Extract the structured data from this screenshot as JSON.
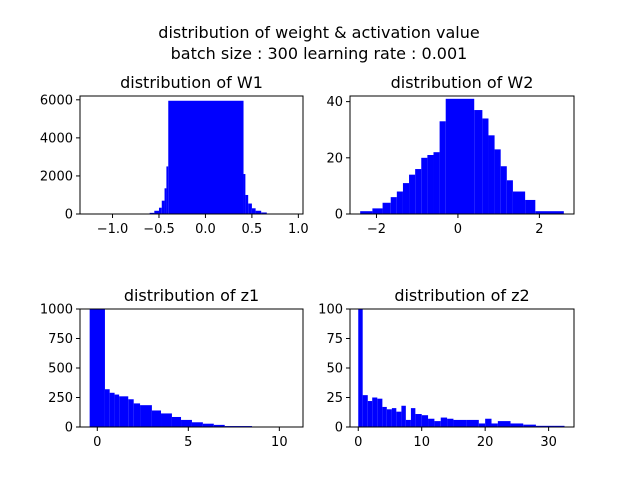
{
  "figure": {
    "title_line1": "distribution of weight & activation value",
    "title_line2": "batch size : 300 learning rate : 0.001",
    "bar_color": "#0000ff"
  },
  "chart_data": [
    {
      "type": "bar",
      "title": "distribution of W1",
      "xlim": [
        -1.35,
        1.05
      ],
      "ylim": [
        0,
        6200
      ],
      "xticks": [
        -1.0,
        -0.5,
        0.0,
        0.5,
        1.0
      ],
      "xtick_labels": [
        "−1.0",
        "−0.5",
        "0.0",
        "0.5",
        "1.0"
      ],
      "yticks": [
        0,
        2000,
        4000,
        6000
      ],
      "ytick_labels": [
        "0",
        "2000",
        "4000",
        "6000"
      ],
      "bins": [
        {
          "x0": -1.24,
          "x1": -0.6,
          "y": 5
        },
        {
          "x0": -0.6,
          "x1": -0.55,
          "y": 60
        },
        {
          "x0": -0.55,
          "x1": -0.5,
          "y": 170
        },
        {
          "x0": -0.5,
          "x1": -0.47,
          "y": 330
        },
        {
          "x0": -0.47,
          "x1": -0.44,
          "y": 700
        },
        {
          "x0": -0.44,
          "x1": -0.42,
          "y": 1350
        },
        {
          "x0": -0.42,
          "x1": -0.4,
          "y": 2500
        },
        {
          "x0": -0.4,
          "x1": 0.41,
          "y": 5950
        },
        {
          "x0": 0.41,
          "x1": 0.43,
          "y": 2100
        },
        {
          "x0": 0.43,
          "x1": 0.46,
          "y": 1000
        },
        {
          "x0": 0.46,
          "x1": 0.5,
          "y": 550
        },
        {
          "x0": 0.5,
          "x1": 0.54,
          "y": 300
        },
        {
          "x0": 0.54,
          "x1": 0.6,
          "y": 170
        },
        {
          "x0": 0.6,
          "x1": 0.66,
          "y": 80
        },
        {
          "x0": 0.66,
          "x1": 0.9,
          "y": 10
        }
      ]
    },
    {
      "type": "bar",
      "title": "distribution of W2",
      "xlim": [
        -2.65,
        2.85
      ],
      "ylim": [
        0,
        42
      ],
      "xticks": [
        -2,
        0,
        2
      ],
      "xtick_labels": [
        "−2",
        "0",
        "2"
      ],
      "yticks": [
        0,
        20,
        40
      ],
      "ytick_labels": [
        "0",
        "20",
        "40"
      ],
      "bins": [
        {
          "x0": -2.4,
          "x1": -2.1,
          "y": 1
        },
        {
          "x0": -2.1,
          "x1": -1.85,
          "y": 2
        },
        {
          "x0": -1.85,
          "x1": -1.65,
          "y": 4
        },
        {
          "x0": -1.65,
          "x1": -1.5,
          "y": 6
        },
        {
          "x0": -1.5,
          "x1": -1.35,
          "y": 8
        },
        {
          "x0": -1.35,
          "x1": -1.2,
          "y": 11
        },
        {
          "x0": -1.2,
          "x1": -1.05,
          "y": 14
        },
        {
          "x0": -1.05,
          "x1": -0.9,
          "y": 16
        },
        {
          "x0": -0.9,
          "x1": -0.75,
          "y": 20
        },
        {
          "x0": -0.75,
          "x1": -0.6,
          "y": 21
        },
        {
          "x0": -0.6,
          "x1": -0.45,
          "y": 22
        },
        {
          "x0": -0.45,
          "x1": -0.3,
          "y": 33
        },
        {
          "x0": -0.3,
          "x1": 0.4,
          "y": 41
        },
        {
          "x0": 0.4,
          "x1": 0.6,
          "y": 37
        },
        {
          "x0": 0.6,
          "x1": 0.75,
          "y": 34
        },
        {
          "x0": 0.75,
          "x1": 0.9,
          "y": 28
        },
        {
          "x0": 0.9,
          "x1": 1.05,
          "y": 23
        },
        {
          "x0": 1.05,
          "x1": 1.2,
          "y": 17
        },
        {
          "x0": 1.2,
          "x1": 1.35,
          "y": 12
        },
        {
          "x0": 1.35,
          "x1": 1.65,
          "y": 8
        },
        {
          "x0": 1.65,
          "x1": 1.9,
          "y": 5
        },
        {
          "x0": 1.9,
          "x1": 2.6,
          "y": 1
        }
      ]
    },
    {
      "type": "bar",
      "title": "distribution of z1",
      "xlim": [
        -0.95,
        11.3
      ],
      "ylim": [
        0,
        1000
      ],
      "xticks": [
        0,
        5,
        10
      ],
      "xtick_labels": [
        "0",
        "5",
        "10"
      ],
      "yticks": [
        0,
        250,
        500,
        750,
        1000
      ],
      "ytick_labels": [
        "0",
        "250",
        "500",
        "750",
        "1000"
      ],
      "bins": [
        {
          "x0": -0.42,
          "x1": 0.42,
          "y": 1000
        },
        {
          "x0": 0.42,
          "x1": 0.68,
          "y": 320
        },
        {
          "x0": 0.68,
          "x1": 0.95,
          "y": 290
        },
        {
          "x0": 0.95,
          "x1": 1.2,
          "y": 275
        },
        {
          "x0": 1.2,
          "x1": 1.7,
          "y": 260
        },
        {
          "x0": 1.7,
          "x1": 2.0,
          "y": 235
        },
        {
          "x0": 2.0,
          "x1": 2.35,
          "y": 200
        },
        {
          "x0": 2.35,
          "x1": 3.0,
          "y": 185
        },
        {
          "x0": 3.0,
          "x1": 3.5,
          "y": 140
        },
        {
          "x0": 3.5,
          "x1": 4.1,
          "y": 115
        },
        {
          "x0": 4.1,
          "x1": 4.6,
          "y": 85
        },
        {
          "x0": 4.6,
          "x1": 5.2,
          "y": 60
        },
        {
          "x0": 5.2,
          "x1": 5.8,
          "y": 40
        },
        {
          "x0": 5.8,
          "x1": 6.4,
          "y": 28
        },
        {
          "x0": 6.4,
          "x1": 7.0,
          "y": 18
        },
        {
          "x0": 7.0,
          "x1": 8.5,
          "y": 8
        },
        {
          "x0": 8.5,
          "x1": 10.0,
          "y": 3
        },
        {
          "x0": 10.0,
          "x1": 10.6,
          "y": 1
        }
      ]
    },
    {
      "type": "bar",
      "title": "distribution of z2",
      "xlim": [
        -1.3,
        34.0
      ],
      "ylim": [
        0,
        100
      ],
      "xticks": [
        0,
        10,
        20,
        30
      ],
      "xtick_labels": [
        "0",
        "10",
        "20",
        "30"
      ],
      "yticks": [
        0,
        25,
        50,
        75,
        100
      ],
      "ytick_labels": [
        "0",
        "25",
        "50",
        "75",
        "100"
      ],
      "bins": [
        {
          "x0": 0.0,
          "x1": 0.7,
          "y": 100
        },
        {
          "x0": 0.7,
          "x1": 1.5,
          "y": 27
        },
        {
          "x0": 1.5,
          "x1": 2.2,
          "y": 22
        },
        {
          "x0": 2.2,
          "x1": 3.0,
          "y": 25
        },
        {
          "x0": 3.0,
          "x1": 3.8,
          "y": 24
        },
        {
          "x0": 3.8,
          "x1": 4.5,
          "y": 17
        },
        {
          "x0": 4.5,
          "x1": 5.3,
          "y": 15
        },
        {
          "x0": 5.3,
          "x1": 6.0,
          "y": 16
        },
        {
          "x0": 6.0,
          "x1": 6.8,
          "y": 13
        },
        {
          "x0": 6.8,
          "x1": 7.5,
          "y": 18
        },
        {
          "x0": 7.5,
          "x1": 8.3,
          "y": 6
        },
        {
          "x0": 8.3,
          "x1": 9.0,
          "y": 16
        },
        {
          "x0": 9.0,
          "x1": 10.0,
          "y": 11
        },
        {
          "x0": 10.0,
          "x1": 11.0,
          "y": 10
        },
        {
          "x0": 11.0,
          "x1": 12.0,
          "y": 7
        },
        {
          "x0": 12.0,
          "x1": 13.0,
          "y": 5
        },
        {
          "x0": 13.0,
          "x1": 14.0,
          "y": 8
        },
        {
          "x0": 14.0,
          "x1": 15.0,
          "y": 7
        },
        {
          "x0": 15.0,
          "x1": 17.0,
          "y": 6
        },
        {
          "x0": 17.0,
          "x1": 19.0,
          "y": 6
        },
        {
          "x0": 19.0,
          "x1": 20.0,
          "y": 3
        },
        {
          "x0": 20.0,
          "x1": 21.0,
          "y": 7
        },
        {
          "x0": 21.0,
          "x1": 22.0,
          "y": 3
        },
        {
          "x0": 22.0,
          "x1": 24.0,
          "y": 5
        },
        {
          "x0": 24.0,
          "x1": 26.0,
          "y": 3
        },
        {
          "x0": 26.0,
          "x1": 28.0,
          "y": 2
        },
        {
          "x0": 28.0,
          "x1": 31.0,
          "y": 1
        },
        {
          "x0": 31.0,
          "x1": 32.5,
          "y": 1
        }
      ]
    }
  ]
}
